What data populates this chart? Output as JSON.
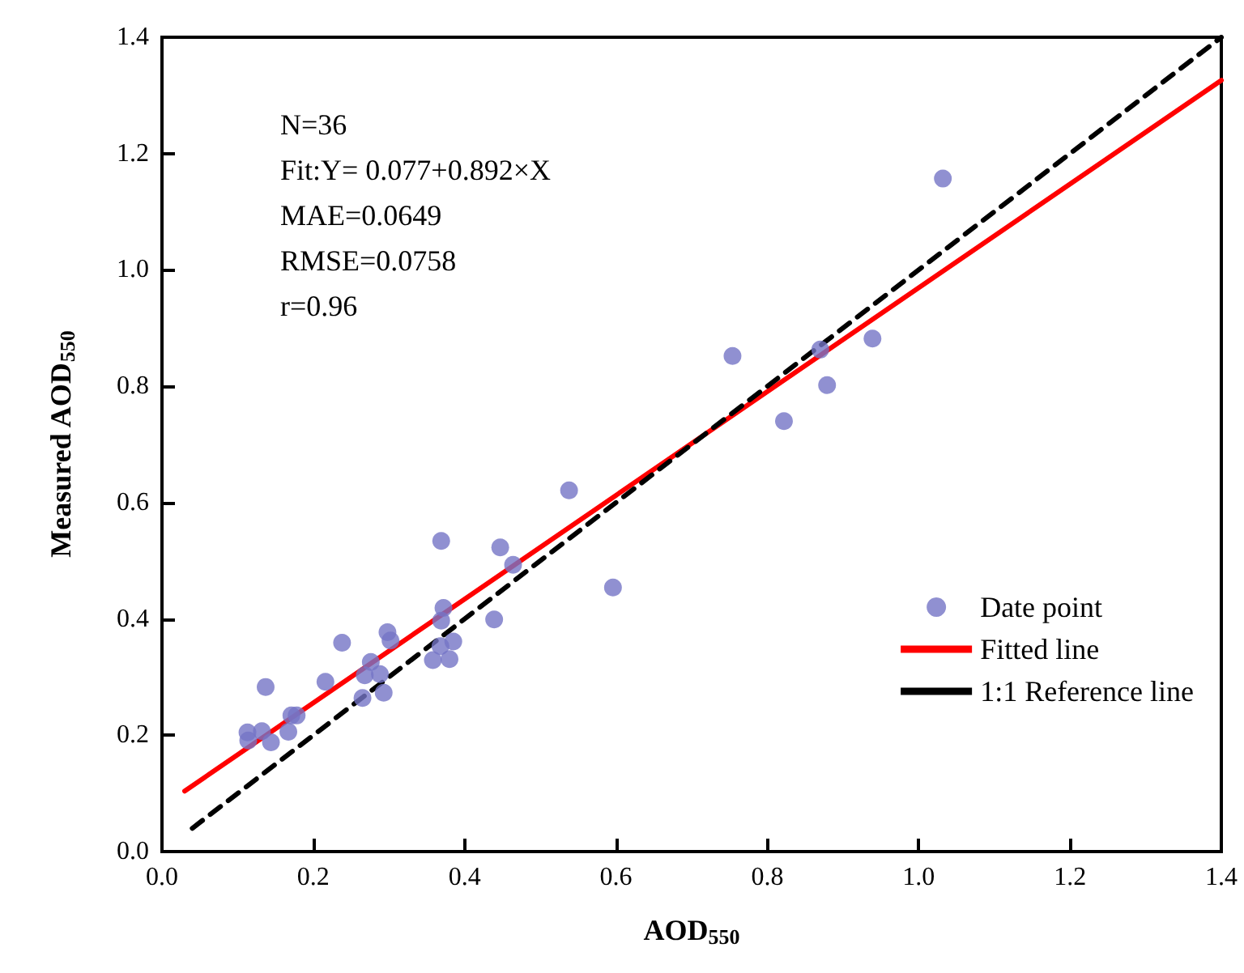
{
  "chart_data": {
    "type": "scatter",
    "xlabel": "AOD$_{550}$",
    "ylabel": "Measured AOD$_{550}$",
    "xlim": [
      0,
      1.4
    ],
    "xticks": [
      {
        "value": 0,
        "label": "0.0"
      },
      {
        "value": 0.2,
        "label": "0.2"
      },
      {
        "value": 0.4,
        "label": "0.4"
      },
      {
        "value": 0.6,
        "label": "0.6"
      },
      {
        "value": 0.8,
        "label": "0.8"
      },
      {
        "value": 1,
        "label": "1.0"
      },
      {
        "value": 1.2,
        "label": "1.2"
      },
      {
        "value": 1.4,
        "label": "1.4"
      }
    ],
    "ylim": [
      0,
      1.4
    ],
    "yticks": [
      {
        "value": 0,
        "label": "0.0"
      },
      {
        "value": 0.2,
        "label": "0.2"
      },
      {
        "value": 0.4,
        "label": "0.4"
      },
      {
        "value": 0.6,
        "label": "0.6"
      },
      {
        "value": 0.8,
        "label": "0.8"
      },
      {
        "value": 1,
        "label": "1.0"
      },
      {
        "value": 1.2,
        "label": "1.2"
      },
      {
        "value": 1.4,
        "label": "1.4"
      }
    ],
    "grid": false,
    "legend": "bottom right",
    "marker": "circle",
    "annotations": [
      "N=36",
      "Fit:Y= 0.077+0.892×X",
      "MAE=0.0649",
      "RMSE=0.0758",
      "r=0.96"
    ],
    "series": [
      {
        "name": "Date point",
        "color": "#7474c6",
        "x": [
          0.113,
          0.114,
          0.132,
          0.144,
          0.137,
          0.167,
          0.171,
          0.178,
          0.216,
          0.238,
          0.265,
          0.268,
          0.276,
          0.288,
          0.293,
          0.298,
          0.302,
          0.358,
          0.368,
          0.369,
          0.369,
          0.372,
          0.38,
          0.385,
          0.439,
          0.447,
          0.464,
          0.538,
          0.596,
          0.754,
          0.822,
          0.87,
          0.879,
          0.939,
          1.032
        ],
        "values": [
          0.205,
          0.191,
          0.207,
          0.188,
          0.283,
          0.206,
          0.234,
          0.234,
          0.292,
          0.359,
          0.264,
          0.303,
          0.326,
          0.305,
          0.273,
          0.377,
          0.363,
          0.329,
          0.353,
          0.397,
          0.534,
          0.419,
          0.331,
          0.361,
          0.399,
          0.523,
          0.493,
          0.621,
          0.454,
          0.852,
          0.74,
          0.863,
          0.802,
          0.882,
          1.157
        ]
      },
      {
        "name": "Fitted line",
        "type": "line",
        "color": "#ff0000",
        "marker": "none",
        "line_style": "solid",
        "x": [
          0.03,
          1.4
        ],
        "values": [
          0.104,
          1.326
        ]
      },
      {
        "name": "1:1 Reference line",
        "type": "line",
        "color": "#000000",
        "marker": "none",
        "line_style": "dashed",
        "x": [
          0.04,
          1.4
        ],
        "values": [
          0.04,
          1.4
        ]
      }
    ]
  }
}
